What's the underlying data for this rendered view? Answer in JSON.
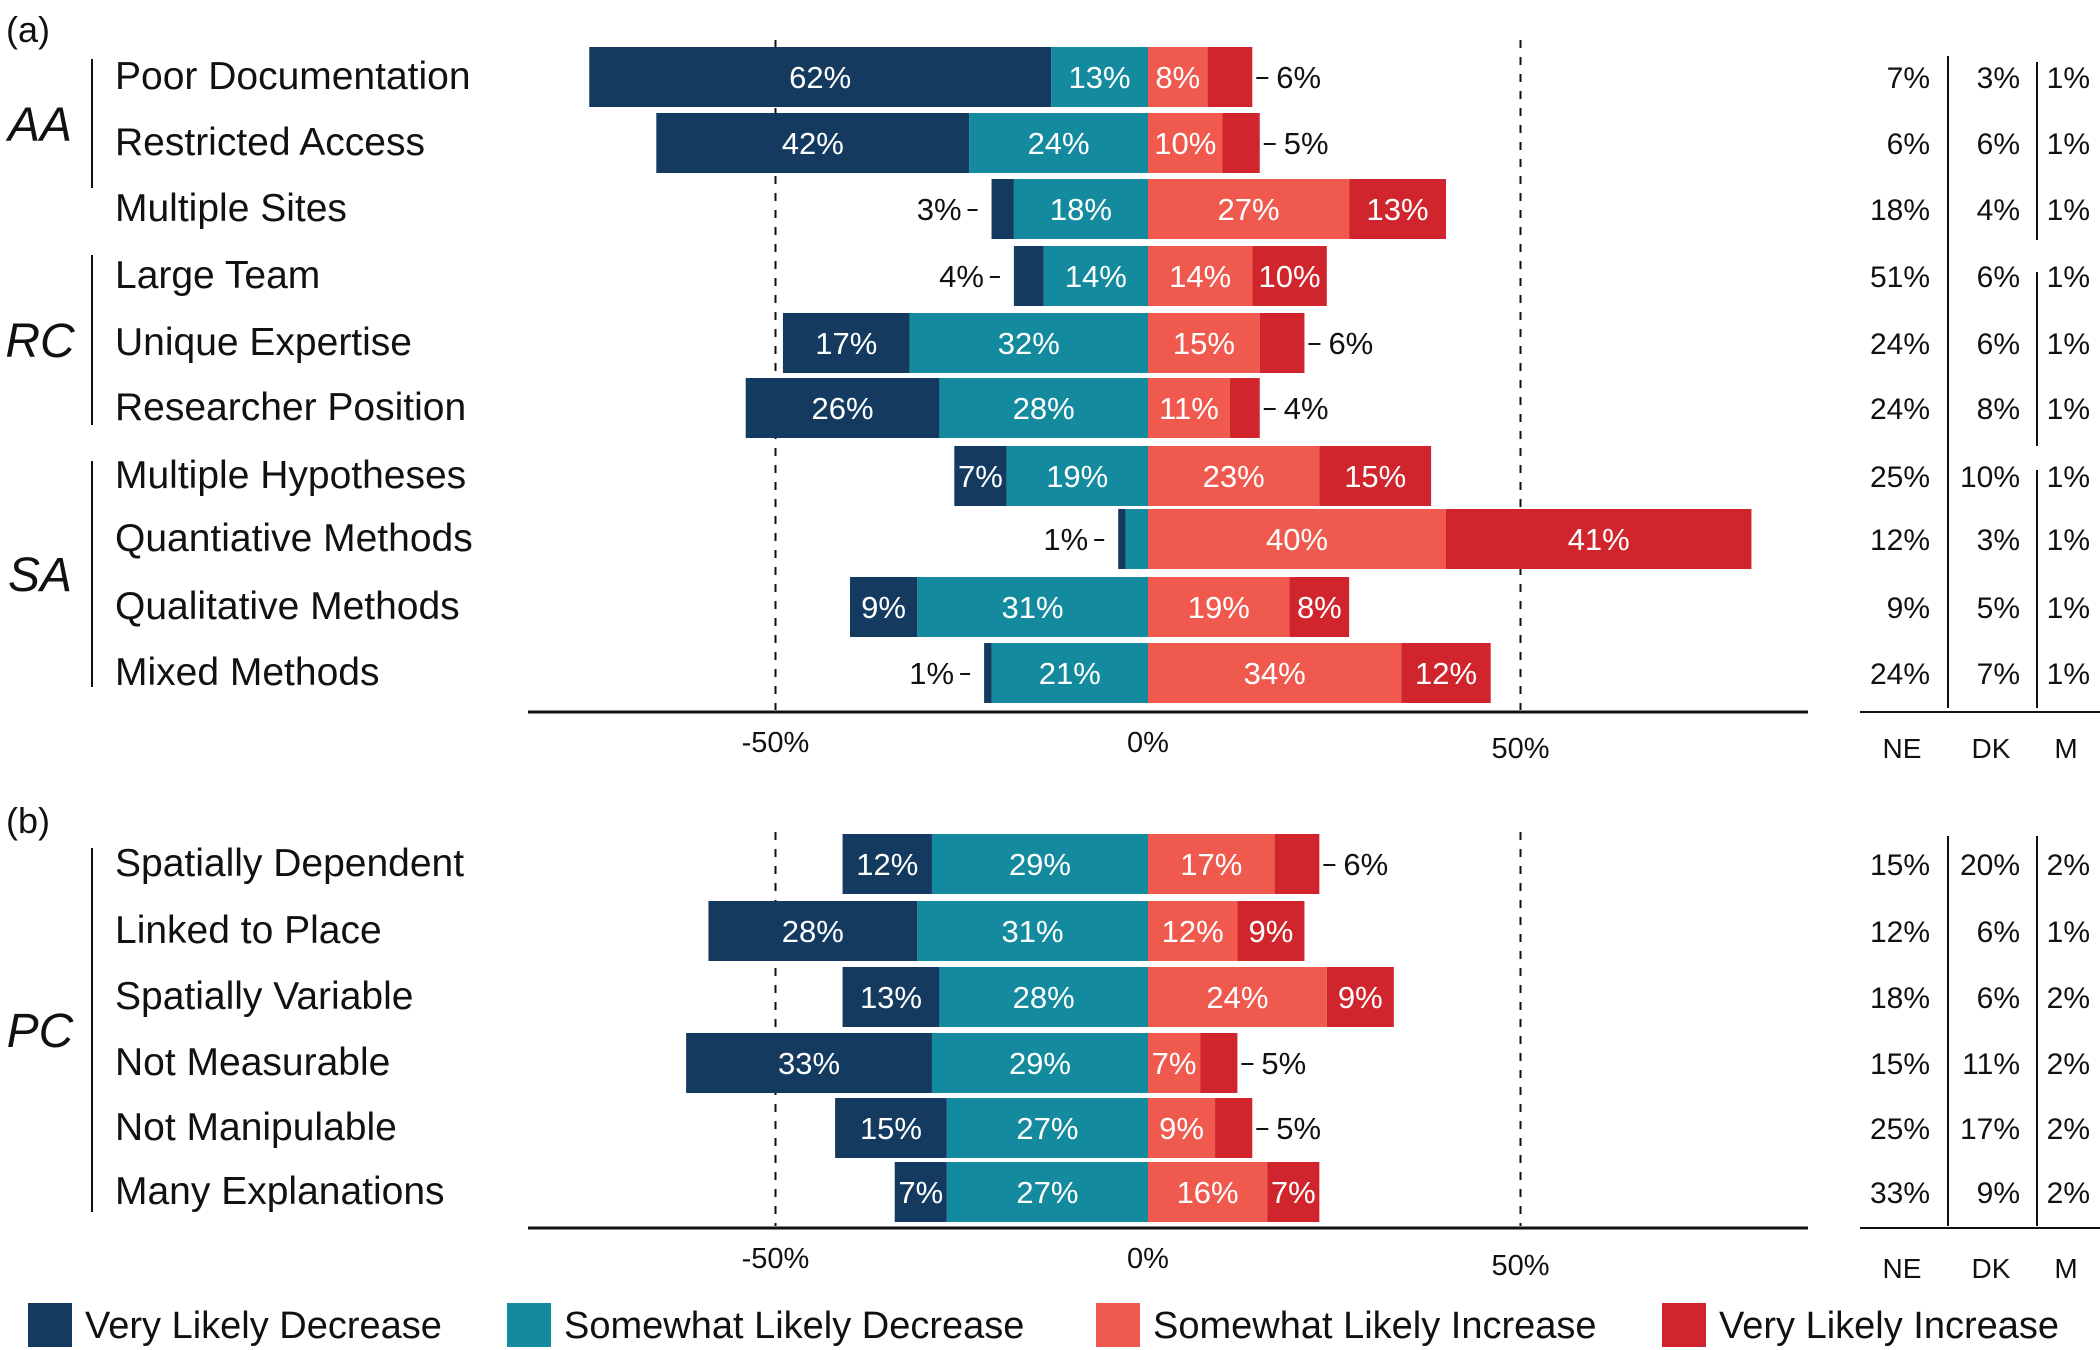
{
  "chart_data": {
    "type": "bar",
    "stacked": "diverging",
    "colors": {
      "very_likely_decrease": "#143a60",
      "somewhat_likely_decrease": "#138a9e",
      "somewhat_likely_increase": "#f05a4e",
      "very_likely_increase": "#d0252d"
    },
    "legend": {
      "position": "bottom",
      "entries": [
        "Very Likely Decrease",
        "Somewhat Likely Decrease",
        "Somewhat Likely Increase",
        "Very Likely Increase"
      ]
    },
    "xlim": [
      -84,
      88
    ],
    "xticks": [
      {
        "value": -50,
        "label": "-50%"
      },
      {
        "value": 0,
        "label": "0%"
      },
      {
        "value": 50,
        "label": "50%"
      }
    ],
    "side_headers": [
      "NE",
      "DK",
      "M"
    ],
    "panels": [
      {
        "label": "(a)",
        "groups": [
          {
            "name": "AA",
            "categories": [
              {
                "name": "Poor Documentation",
                "values": [
                  62,
                  13,
                  8,
                  6
                ],
                "labels": [
                  "62%",
                  "13%",
                  "8%",
                  "6%"
                ],
                "side": [
                  "7%",
                  "3%",
                  "1%"
                ]
              },
              {
                "name": "Restricted Access",
                "values": [
                  42,
                  24,
                  10,
                  5
                ],
                "labels": [
                  "42%",
                  "24%",
                  "10%",
                  "5%"
                ],
                "side": [
                  "6%",
                  "6%",
                  "1%"
                ]
              },
              {
                "name": "Multiple Sites",
                "values": [
                  3,
                  18,
                  27,
                  13
                ],
                "labels": [
                  "3%",
                  "18%",
                  "27%",
                  "13%"
                ],
                "side": [
                  "18%",
                  "4%",
                  "1%"
                ]
              }
            ]
          },
          {
            "name": "RC",
            "categories": [
              {
                "name": "Large Team",
                "values": [
                  4,
                  14,
                  14,
                  10
                ],
                "labels": [
                  "4%",
                  "14%",
                  "14%",
                  "10%"
                ],
                "side": [
                  "51%",
                  "6%",
                  "1%"
                ]
              },
              {
                "name": "Unique Expertise",
                "values": [
                  17,
                  32,
                  15,
                  6
                ],
                "labels": [
                  "17%",
                  "32%",
                  "15%",
                  "6%"
                ],
                "side": [
                  "24%",
                  "6%",
                  "1%"
                ]
              },
              {
                "name": "Researcher Position",
                "values": [
                  26,
                  28,
                  11,
                  4
                ],
                "labels": [
                  "26%",
                  "28%",
                  "11%",
                  "4%"
                ],
                "side": [
                  "24%",
                  "8%",
                  "1%"
                ]
              }
            ]
          },
          {
            "name": "SA",
            "categories": [
              {
                "name": "Multiple Hypotheses",
                "values": [
                  7,
                  19,
                  23,
                  15
                ],
                "labels": [
                  "7%",
                  "19%",
                  "23%",
                  "15%"
                ],
                "side": [
                  "25%",
                  "10%",
                  "1%"
                ]
              },
              {
                "name": "Quantiative Methods",
                "values": [
                  1,
                  3,
                  40,
                  41
                ],
                "labels": [
                  "1%",
                  "",
                  "40%",
                  "41%"
                ],
                "side": [
                  "12%",
                  "3%",
                  "1%"
                ]
              },
              {
                "name": "Qualitative Methods",
                "values": [
                  9,
                  31,
                  19,
                  8
                ],
                "labels": [
                  "9%",
                  "31%",
                  "19%",
                  "8%"
                ],
                "side": [
                  "9%",
                  "5%",
                  "1%"
                ]
              },
              {
                "name": "Mixed Methods",
                "values": [
                  1,
                  21,
                  34,
                  12
                ],
                "labels": [
                  "1%",
                  "21%",
                  "34%",
                  "12%"
                ],
                "side": [
                  "24%",
                  "7%",
                  "1%"
                ]
              }
            ]
          }
        ]
      },
      {
        "label": "(b)",
        "groups": [
          {
            "name": "PC",
            "categories": [
              {
                "name": "Spatially Dependent",
                "values": [
                  12,
                  29,
                  17,
                  6
                ],
                "labels": [
                  "12%",
                  "29%",
                  "17%",
                  "6%"
                ],
                "side": [
                  "15%",
                  "20%",
                  "2%"
                ]
              },
              {
                "name": "Linked to Place",
                "values": [
                  28,
                  31,
                  12,
                  9
                ],
                "labels": [
                  "28%",
                  "31%",
                  "12%",
                  "9%"
                ],
                "side": [
                  "12%",
                  "6%",
                  "1%"
                ]
              },
              {
                "name": "Spatially Variable",
                "values": [
                  13,
                  28,
                  24,
                  9
                ],
                "labels": [
                  "13%",
                  "28%",
                  "24%",
                  "9%"
                ],
                "side": [
                  "18%",
                  "6%",
                  "2%"
                ]
              },
              {
                "name": "Not Measurable",
                "values": [
                  33,
                  29,
                  7,
                  5
                ],
                "labels": [
                  "33%",
                  "29%",
                  "7%",
                  "5%"
                ],
                "side": [
                  "15%",
                  "11%",
                  "2%"
                ]
              },
              {
                "name": "Not Manipulable",
                "values": [
                  15,
                  27,
                  9,
                  5
                ],
                "labels": [
                  "15%",
                  "27%",
                  "9%",
                  "5%"
                ],
                "side": [
                  "25%",
                  "17%",
                  "2%"
                ]
              },
              {
                "name": "Many Explanations",
                "values": [
                  7,
                  27,
                  16,
                  7
                ],
                "labels": [
                  "7%",
                  "27%",
                  "16%",
                  "7%"
                ],
                "side": [
                  "33%",
                  "9%",
                  "2%"
                ]
              }
            ]
          }
        ]
      }
    ]
  }
}
